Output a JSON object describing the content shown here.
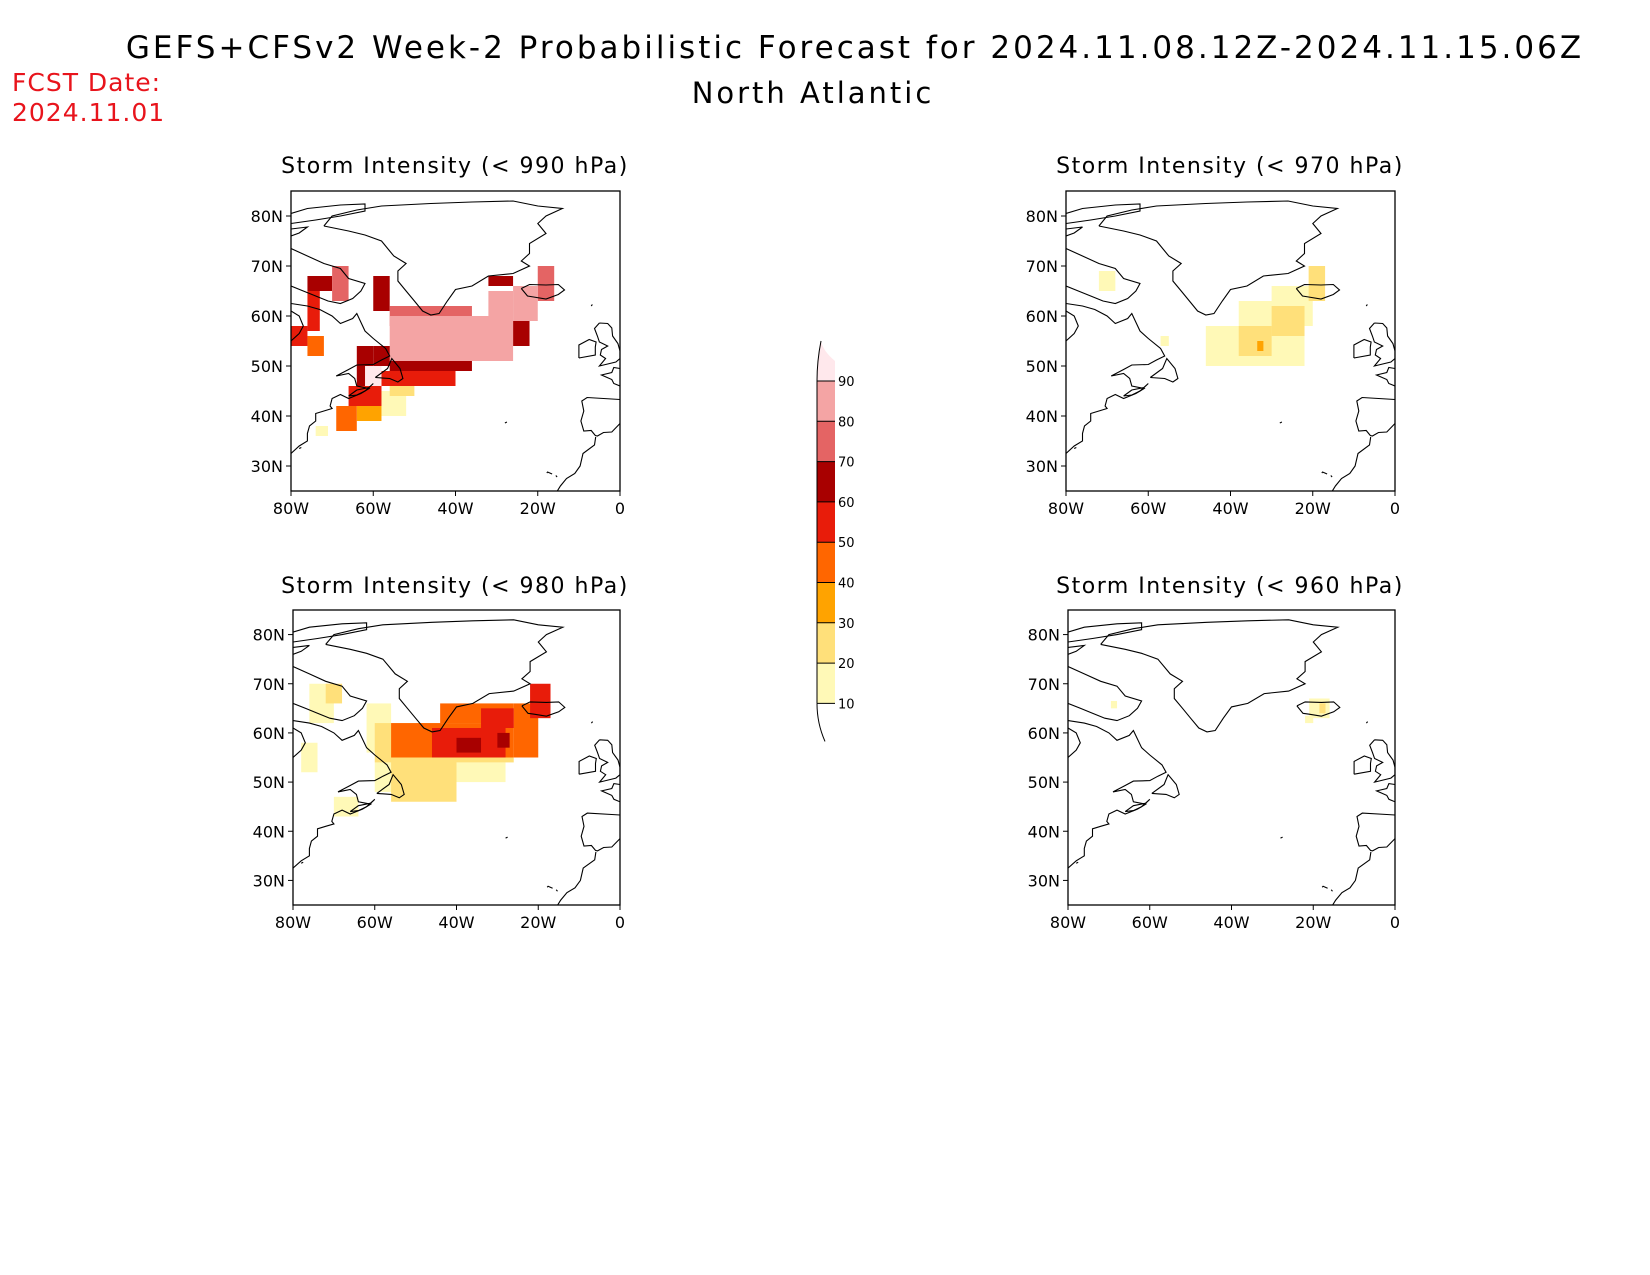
{
  "header": {
    "title": "GEFS+CFSv2 Week-2 Probabilistic Forecast for 2024.11.08.12Z-2024.11.15.06Z",
    "subtitle": "North Atlantic",
    "fcst_label": "FCST Date:",
    "fcst_date": "2024.11.01"
  },
  "colors": {
    "c10": "#fff9b7",
    "c20": "#ffe07a",
    "c30": "#ffa300",
    "c40": "#ff6600",
    "c50": "#e81c0a",
    "c60": "#a80000",
    "c70": "#e46464",
    "c80": "#f4a4a4",
    "c90": "#ffe8ec",
    "accent_red": "#e8141c"
  },
  "colorbar": {
    "levels": [
      "10",
      "20",
      "30",
      "40",
      "50",
      "60",
      "70",
      "80",
      "90"
    ]
  },
  "axes": {
    "lat_labels": [
      "80N",
      "70N",
      "60N",
      "50N",
      "40N",
      "30N"
    ],
    "lon_labels": [
      "80W",
      "60W",
      "40W",
      "20W",
      "0"
    ]
  },
  "panels": [
    {
      "id": "p990",
      "title": "Storm Intensity (< 990 hPa)",
      "extent": {
        "lon": [
          -80,
          0
        ],
        "lat": [
          25,
          85
        ]
      },
      "cells": [
        {
          "lon0": -70,
          "lon1": -66,
          "lat0": 63,
          "lat1": 70,
          "level": 70
        },
        {
          "lon0": -76,
          "lon1": -70,
          "lat0": 65,
          "lat1": 68,
          "level": 60
        },
        {
          "lon0": -76,
          "lon1": -73,
          "lat0": 57,
          "lat1": 65,
          "level": 50
        },
        {
          "lon0": -80,
          "lon1": -76,
          "lat0": 54,
          "lat1": 58,
          "level": 50
        },
        {
          "lon0": -76,
          "lon1": -72,
          "lat0": 52,
          "lat1": 56,
          "level": 40
        },
        {
          "lon0": -60,
          "lon1": -56,
          "lat0": 61,
          "lat1": 68,
          "level": 60
        },
        {
          "lon0": -56,
          "lon1": -36,
          "lat0": 58,
          "lat1": 62,
          "level": 70
        },
        {
          "lon0": -56,
          "lon1": -26,
          "lat0": 51,
          "lat1": 60,
          "level": 80
        },
        {
          "lon0": -32,
          "lon1": -26,
          "lat0": 60,
          "lat1": 65,
          "level": 80
        },
        {
          "lon0": -26,
          "lon1": -20,
          "lat0": 59,
          "lat1": 66,
          "level": 80
        },
        {
          "lon0": -20,
          "lon1": -16,
          "lat0": 63,
          "lat1": 70,
          "level": 70
        },
        {
          "lon0": -32,
          "lon1": -26,
          "lat0": 66,
          "lat1": 68,
          "level": 60
        },
        {
          "lon0": -26,
          "lon1": -22,
          "lat0": 54,
          "lat1": 59,
          "level": 60
        },
        {
          "lon0": -60,
          "lon1": -52,
          "lat0": 50,
          "lat1": 54,
          "level": 60
        },
        {
          "lon0": -56,
          "lon1": -36,
          "lat0": 49,
          "lat1": 52,
          "level": 60
        },
        {
          "lon0": -64,
          "lon1": -60,
          "lat0": 46,
          "lat1": 54,
          "level": 60
        },
        {
          "lon0": -62,
          "lon1": -58,
          "lat0": 46,
          "lat1": 50,
          "level": 90
        },
        {
          "lon0": -58,
          "lon1": -40,
          "lat0": 46,
          "lat1": 49,
          "level": 50
        },
        {
          "lon0": -66,
          "lon1": -58,
          "lat0": 42,
          "lat1": 46,
          "level": 50
        },
        {
          "lon0": -69,
          "lon1": -64,
          "lat0": 37,
          "lat1": 42,
          "level": 40
        },
        {
          "lon0": -64,
          "lon1": -58,
          "lat0": 39,
          "lat1": 42,
          "level": 30
        },
        {
          "lon0": -58,
          "lon1": -52,
          "lat0": 40,
          "lat1": 45,
          "level": 10
        },
        {
          "lon0": -56,
          "lon1": -50,
          "lat0": 44,
          "lat1": 46,
          "level": 20
        },
        {
          "lon0": -74,
          "lon1": -71,
          "lat0": 36,
          "lat1": 38,
          "level": 10
        }
      ]
    },
    {
      "id": "p970",
      "title": "Storm Intensity (< 970 hPa)",
      "extent": {
        "lon": [
          -80,
          0
        ],
        "lat": [
          25,
          85
        ]
      },
      "cells": [
        {
          "lon0": -72,
          "lon1": -68,
          "lat0": 65,
          "lat1": 69,
          "level": 10
        },
        {
          "lon0": -46,
          "lon1": -22,
          "lat0": 50,
          "lat1": 58,
          "level": 10
        },
        {
          "lon0": -38,
          "lon1": -20,
          "lat0": 58,
          "lat1": 63,
          "level": 10
        },
        {
          "lon0": -30,
          "lon1": -20,
          "lat0": 63,
          "lat1": 66,
          "level": 10
        },
        {
          "lon0": -21,
          "lon1": -17,
          "lat0": 63,
          "lat1": 70,
          "level": 20
        },
        {
          "lon0": -38,
          "lon1": -30,
          "lat0": 52,
          "lat1": 58,
          "level": 20
        },
        {
          "lon0": -30,
          "lon1": -22,
          "lat0": 56,
          "lat1": 62,
          "level": 20
        },
        {
          "lon0": -33.5,
          "lon1": -32,
          "lat0": 53,
          "lat1": 55,
          "level": 30
        },
        {
          "lon0": -57,
          "lon1": -55,
          "lat0": 54,
          "lat1": 56,
          "level": 10
        }
      ]
    },
    {
      "id": "p980",
      "title": "Storm Intensity (< 980 hPa)",
      "extent": {
        "lon": [
          -80,
          0
        ],
        "lat": [
          25,
          85
        ]
      },
      "cells": [
        {
          "lon0": -76,
          "lon1": -70,
          "lat0": 62,
          "lat1": 70,
          "level": 10
        },
        {
          "lon0": -72,
          "lon1": -68,
          "lat0": 66,
          "lat1": 70,
          "level": 20
        },
        {
          "lon0": -78,
          "lon1": -74,
          "lat0": 52,
          "lat1": 58,
          "level": 10
        },
        {
          "lon0": -62,
          "lon1": -56,
          "lat0": 56,
          "lat1": 66,
          "level": 10
        },
        {
          "lon0": -60,
          "lon1": -26,
          "lat0": 54,
          "lat1": 62,
          "level": 20
        },
        {
          "lon0": -56,
          "lon1": -40,
          "lat0": 46,
          "lat1": 56,
          "level": 20
        },
        {
          "lon0": -40,
          "lon1": -28,
          "lat0": 50,
          "lat1": 54,
          "level": 10
        },
        {
          "lon0": -60,
          "lon1": -54,
          "lat0": 48,
          "lat1": 54,
          "level": 10
        },
        {
          "lon0": -70,
          "lon1": -64,
          "lat0": 43,
          "lat1": 47,
          "level": 10
        },
        {
          "lon0": -56,
          "lon1": -26,
          "lat0": 55,
          "lat1": 62,
          "level": 40
        },
        {
          "lon0": -44,
          "lon1": -26,
          "lat0": 62,
          "lat1": 66,
          "level": 40
        },
        {
          "lon0": -26,
          "lon1": -20,
          "lat0": 55,
          "lat1": 66,
          "level": 40
        },
        {
          "lon0": -46,
          "lon1": -28,
          "lat0": 55,
          "lat1": 61,
          "level": 50
        },
        {
          "lon0": -34,
          "lon1": -26,
          "lat0": 61,
          "lat1": 65,
          "level": 50
        },
        {
          "lon0": -22,
          "lon1": -17,
          "lat0": 63,
          "lat1": 70,
          "level": 50
        },
        {
          "lon0": -40,
          "lon1": -34,
          "lat0": 56,
          "lat1": 59,
          "level": 60
        },
        {
          "lon0": -30,
          "lon1": -27,
          "lat0": 57,
          "lat1": 60,
          "level": 60
        }
      ]
    },
    {
      "id": "p960",
      "title": "Storm Intensity (< 960 hPa)",
      "extent": {
        "lon": [
          -80,
          0
        ],
        "lat": [
          25,
          85
        ]
      },
      "cells": [
        {
          "lon0": -21,
          "lon1": -16,
          "lat0": 63,
          "lat1": 67,
          "level": 10
        },
        {
          "lon0": -22,
          "lon1": -20,
          "lat0": 62,
          "lat1": 63.5,
          "level": 10
        },
        {
          "lon0": -18.5,
          "lon1": -17,
          "lat0": 64,
          "lat1": 66,
          "level": 20
        },
        {
          "lon0": -69.5,
          "lon1": -68,
          "lat0": 65,
          "lat1": 66.5,
          "level": 10
        }
      ]
    }
  ]
}
